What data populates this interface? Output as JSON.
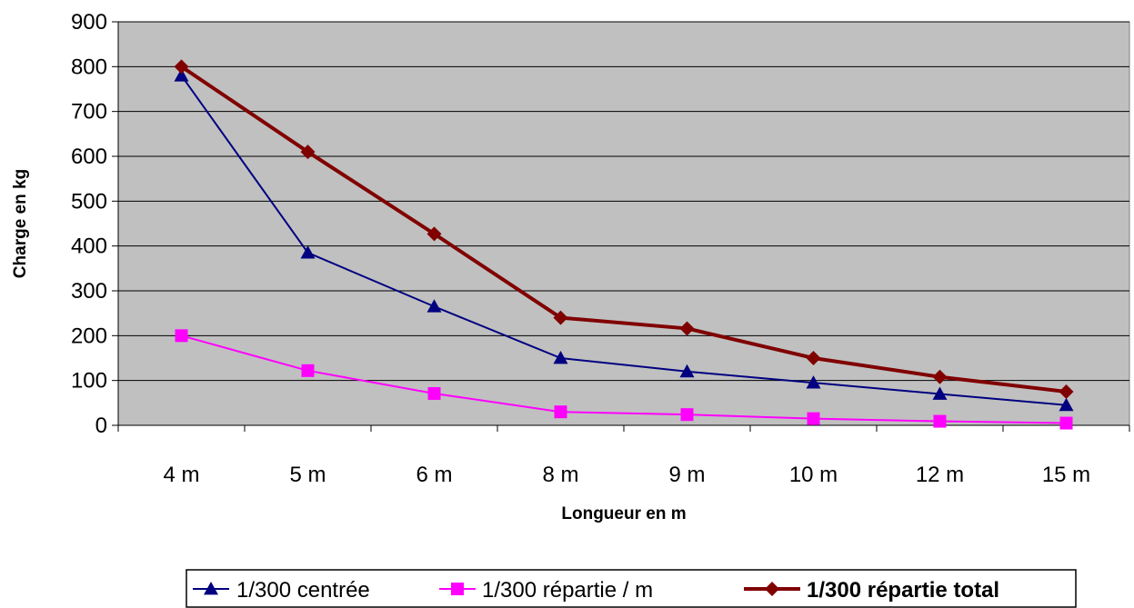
{
  "chart_data": {
    "type": "line",
    "title": "",
    "xlabel": "Longueur en m",
    "ylabel": "Charge en kg",
    "categories": [
      "4 m",
      "5 m",
      "6 m",
      "8 m",
      "9 m",
      "10 m",
      "12 m",
      "15 m"
    ],
    "ylim": [
      0,
      900
    ],
    "yticks": [
      0,
      100,
      200,
      300,
      400,
      500,
      600,
      700,
      800,
      900
    ],
    "grid": true,
    "plot_background": "#c0c0c0",
    "legend_position": "bottom",
    "series": [
      {
        "name": "1/300 centrée",
        "values": [
          780,
          385,
          265,
          150,
          120,
          95,
          70,
          45
        ],
        "color": "#000080",
        "marker": "triangle",
        "bold": false,
        "stroke_weight": "thin"
      },
      {
        "name": "1/300 répartie / m",
        "values": [
          200,
          122,
          71,
          30,
          24,
          15,
          9,
          5
        ],
        "color": "#ff00ff",
        "marker": "square",
        "bold": false,
        "stroke_weight": "thin"
      },
      {
        "name": "1/300 répartie total",
        "values": [
          800,
          610,
          427,
          240,
          216,
          150,
          108,
          75
        ],
        "color": "#800000",
        "marker": "diamond",
        "bold": true,
        "stroke_weight": "thick"
      }
    ]
  }
}
